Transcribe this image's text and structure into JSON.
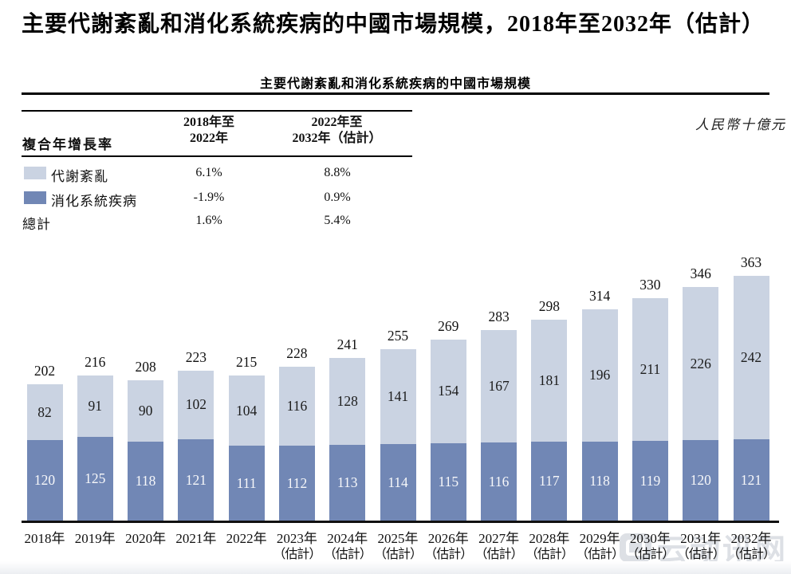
{
  "title": "主要代謝紊亂和消化系統疾病的中國市場規模，2018年至2032年（估計）",
  "subtitle": "主要代謝紊亂和消化系統疾病的中國市場規模",
  "unit_label": "人民幣十億元",
  "cagr_table": {
    "header_label": "複合年增長率",
    "col_headers": [
      {
        "line1": "2018年至",
        "line2": "2022年"
      },
      {
        "line1": "2022年至",
        "line2": "2032年（估計）"
      }
    ],
    "rows": [
      {
        "label": "代謝紊亂",
        "swatch": 0,
        "values": [
          "6.1%",
          "8.8%"
        ]
      },
      {
        "label": "消化系統疾病",
        "swatch": 1,
        "values": [
          "-1.9%",
          "0.9%"
        ]
      },
      {
        "label": "總計",
        "swatch": -1,
        "values": [
          "1.6%",
          "5.4%"
        ]
      }
    ]
  },
  "chart_data": {
    "type": "bar",
    "stacked": true,
    "title": "主要代謝紊亂和消化系統疾病的中國市場規模",
    "ylabel": "人民幣十億元",
    "xlabel": "",
    "grid": false,
    "legend_position": "table-upper-left",
    "ylim": [
      0,
      380
    ],
    "categories": [
      "2018年",
      "2019年",
      "2020年",
      "2021年",
      "2022年",
      "2023年",
      "2024年",
      "2025年",
      "2026年",
      "2027年",
      "2028年",
      "2029年",
      "2030年",
      "2031年",
      "2032年"
    ],
    "estimate_suffix": "（估計）",
    "estimate_from_index": 5,
    "series": [
      {
        "name": "代謝紊亂",
        "color": "#cad3e2",
        "position": "top",
        "values": [
          82,
          91,
          90,
          102,
          104,
          116,
          128,
          141,
          154,
          167,
          181,
          196,
          211,
          226,
          242
        ]
      },
      {
        "name": "消化系統疾病",
        "color": "#7187b5",
        "position": "bottom",
        "values": [
          120,
          125,
          118,
          121,
          111,
          112,
          113,
          114,
          115,
          116,
          117,
          118,
          119,
          120,
          121
        ]
      }
    ],
    "totals": [
      202,
      216,
      208,
      223,
      215,
      228,
      241,
      255,
      269,
      283,
      298,
      314,
      330,
      346,
      363
    ]
  },
  "watermark": {
    "text": "云动讯网"
  }
}
